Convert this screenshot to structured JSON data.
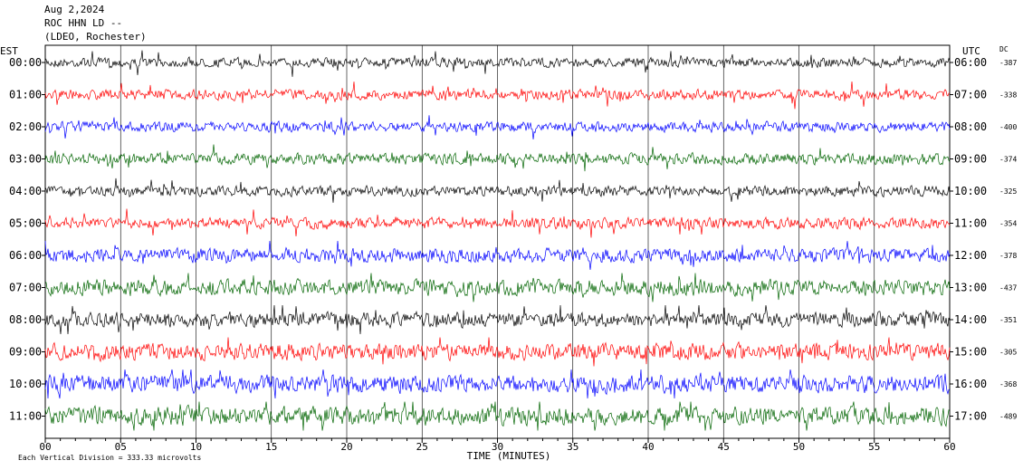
{
  "header": {
    "date": "Aug 2,2024",
    "station": "ROC HHN LD --",
    "network": "(LDEO, Rochester)"
  },
  "chart_data": {
    "type": "line",
    "left_axis_title": "EST",
    "right_axis_title": "UTC",
    "dc_title": "DC",
    "xlabel": "TIME (MINUTES)",
    "xlim": [
      0,
      60
    ],
    "x_ticks": [
      "00",
      "05",
      "10",
      "15",
      "20",
      "25",
      "30",
      "35",
      "40",
      "45",
      "50",
      "55",
      "60"
    ],
    "scale_note": "Each Vertical Division =  333.33 microvolts",
    "series": [
      {
        "est": "00:00",
        "utc": "06:00",
        "dc": "-387",
        "color": "#000000",
        "amp": 0.5
      },
      {
        "est": "01:00",
        "utc": "07:00",
        "dc": "-338",
        "color": "#ff0000",
        "amp": 0.55
      },
      {
        "est": "02:00",
        "utc": "08:00",
        "dc": "-400",
        "color": "#0000ff",
        "amp": 0.55
      },
      {
        "est": "03:00",
        "utc": "09:00",
        "dc": "-374",
        "color": "#006400",
        "amp": 0.6
      },
      {
        "est": "04:00",
        "utc": "10:00",
        "dc": "-325",
        "color": "#000000",
        "amp": 0.55
      },
      {
        "est": "05:00",
        "utc": "11:00",
        "dc": "-354",
        "color": "#ff0000",
        "amp": 0.6
      },
      {
        "est": "06:00",
        "utc": "12:00",
        "dc": "-378",
        "color": "#0000ff",
        "amp": 0.75
      },
      {
        "est": "07:00",
        "utc": "13:00",
        "dc": "-437",
        "color": "#006400",
        "amp": 0.85
      },
      {
        "est": "08:00",
        "utc": "14:00",
        "dc": "-351",
        "color": "#000000",
        "amp": 0.8
      },
      {
        "est": "09:00",
        "utc": "15:00",
        "dc": "-305",
        "color": "#ff0000",
        "amp": 0.9
      },
      {
        "est": "10:00",
        "utc": "16:00",
        "dc": "-368",
        "color": "#0000ff",
        "amp": 0.95
      },
      {
        "est": "11:00",
        "utc": "17:00",
        "dc": "-489",
        "color": "#006400",
        "amp": 1.0
      }
    ]
  }
}
